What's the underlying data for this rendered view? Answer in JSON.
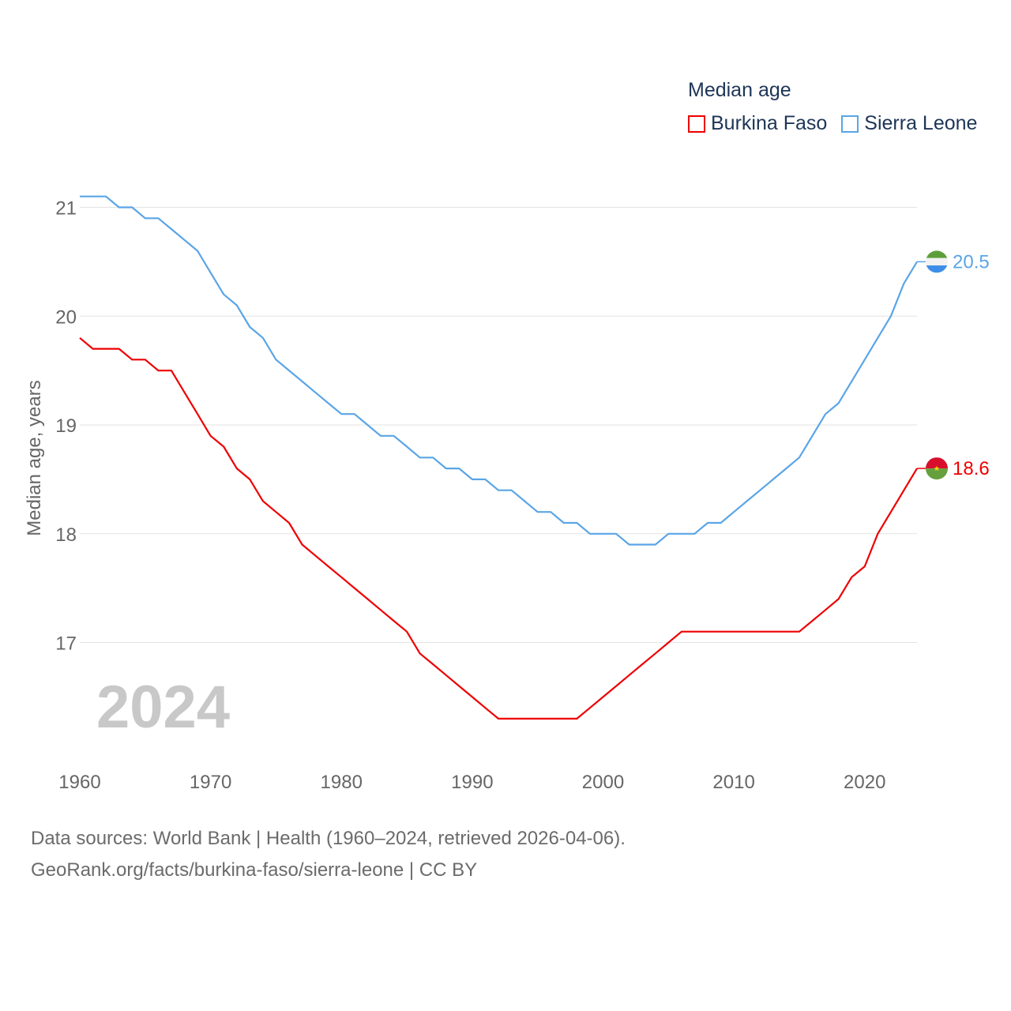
{
  "legend": {
    "title": "Median age",
    "items": [
      {
        "label": "Burkina Faso",
        "color": "#ee0000"
      },
      {
        "label": "Sierra Leone",
        "color": "#5aa5e6"
      }
    ]
  },
  "year_watermark": "2024",
  "footer": {
    "line1": "Data sources: World Bank | Health (1960–2024, retrieved 2026-04-06).",
    "line2": "GeoRank.org/facts/burkina-faso/sierra-leone | CC BY"
  },
  "chart_data": {
    "type": "line",
    "title": "Median age",
    "xlabel": "",
    "ylabel": "Median age, years",
    "xlim": [
      1960,
      2024
    ],
    "ylim": [
      16,
      21.2
    ],
    "x_ticks": [
      "1960",
      "1970",
      "1980",
      "1990",
      "2000",
      "2010",
      "2020"
    ],
    "y_ticks": [
      "17",
      "18",
      "19",
      "20",
      "21"
    ],
    "x": [
      1960,
      1961,
      1962,
      1963,
      1964,
      1965,
      1966,
      1967,
      1968,
      1969,
      1970,
      1971,
      1972,
      1973,
      1974,
      1975,
      1976,
      1977,
      1978,
      1979,
      1980,
      1981,
      1982,
      1983,
      1984,
      1985,
      1986,
      1987,
      1988,
      1989,
      1990,
      1991,
      1992,
      1993,
      1994,
      1995,
      1996,
      1997,
      1998,
      1999,
      2000,
      2001,
      2002,
      2003,
      2004,
      2005,
      2006,
      2007,
      2008,
      2009,
      2010,
      2011,
      2012,
      2013,
      2014,
      2015,
      2016,
      2017,
      2018,
      2019,
      2020,
      2021,
      2022,
      2023,
      2024
    ],
    "series": [
      {
        "name": "Burkina Faso",
        "color": "#ee0000",
        "end_label": "18.6",
        "values": [
          19.8,
          19.7,
          19.7,
          19.7,
          19.6,
          19.6,
          19.5,
          19.5,
          19.3,
          19.1,
          18.9,
          18.8,
          18.6,
          18.5,
          18.3,
          18.2,
          18.1,
          17.9,
          17.8,
          17.7,
          17.6,
          17.5,
          17.4,
          17.3,
          17.2,
          17.1,
          16.9,
          16.8,
          16.7,
          16.6,
          16.5,
          16.4,
          16.3,
          16.3,
          16.3,
          16.3,
          16.3,
          16.3,
          16.3,
          16.4,
          16.5,
          16.6,
          16.7,
          16.8,
          16.9,
          17.0,
          17.1,
          17.1,
          17.1,
          17.1,
          17.1,
          17.1,
          17.1,
          17.1,
          17.1,
          17.1,
          17.2,
          17.3,
          17.4,
          17.6,
          17.7,
          18.0,
          18.2,
          18.4,
          18.6
        ]
      },
      {
        "name": "Sierra Leone",
        "color": "#5aa5e6",
        "end_label": "20.5",
        "values": [
          21.1,
          21.1,
          21.1,
          21.0,
          21.0,
          20.9,
          20.9,
          20.8,
          20.7,
          20.6,
          20.4,
          20.2,
          20.1,
          19.9,
          19.8,
          19.6,
          19.5,
          19.4,
          19.3,
          19.2,
          19.1,
          19.1,
          19.0,
          18.9,
          18.9,
          18.8,
          18.7,
          18.7,
          18.6,
          18.6,
          18.5,
          18.5,
          18.4,
          18.4,
          18.3,
          18.2,
          18.2,
          18.1,
          18.1,
          18.0,
          18.0,
          18.0,
          17.9,
          17.9,
          17.9,
          18.0,
          18.0,
          18.0,
          18.1,
          18.1,
          18.2,
          18.3,
          18.4,
          18.5,
          18.6,
          18.7,
          18.9,
          19.1,
          19.2,
          19.4,
          19.6,
          19.8,
          20.0,
          20.3,
          20.5
        ]
      }
    ]
  }
}
